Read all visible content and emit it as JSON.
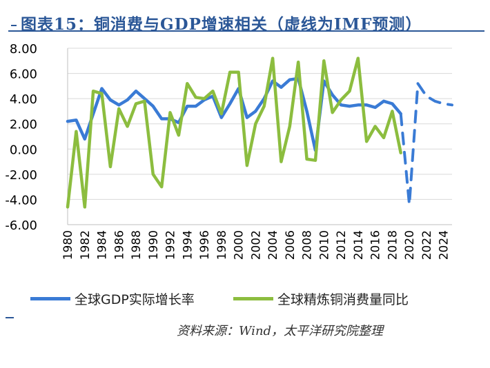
{
  "title": "图表15：铜消费与GDP增速相关（虚线为IMF预测）",
  "source": "资料来源：Wind，太平洋研究院整理",
  "colors": {
    "gdp": "#3a7bd5",
    "copper": "#8cbd3f",
    "title": "#2b5797",
    "grid": "#d9d9d9"
  },
  "chart_data": {
    "type": "line",
    "title": "",
    "xlabel": "",
    "ylabel": "",
    "ylim": [
      -6,
      8
    ],
    "yticks": [
      "-6.00",
      "-4.00",
      "-2.00",
      "0.00",
      "2.00",
      "4.00",
      "6.00",
      "8.00"
    ],
    "xticks": [
      "1980",
      "1982",
      "1984",
      "1986",
      "1988",
      "1990",
      "1992",
      "1994",
      "1996",
      "1998",
      "2000",
      "2002",
      "2004",
      "2006",
      "2008",
      "2010",
      "2012",
      "2014",
      "2016",
      "2018",
      "2020",
      "2022",
      "2024"
    ],
    "xrange": [
      1980,
      2025
    ],
    "grid": "horizontal",
    "legend_position": "bottom",
    "series": [
      {
        "name": "全球GDP实际增长率",
        "color": "#3a7bd5",
        "style": "solid",
        "x": [
          1980,
          1981,
          1982,
          1983,
          1984,
          1985,
          1986,
          1987,
          1988,
          1989,
          1990,
          1991,
          1992,
          1993,
          1994,
          1995,
          1996,
          1997,
          1998,
          1999,
          2000,
          2001,
          2002,
          2003,
          2004,
          2005,
          2006,
          2007,
          2008,
          2009,
          2010,
          2011,
          2012,
          2013,
          2014,
          2015,
          2016,
          2017,
          2018,
          2019
        ],
        "y": [
          2.2,
          2.3,
          0.8,
          2.8,
          4.8,
          3.9,
          3.5,
          3.9,
          4.6,
          4.0,
          3.4,
          2.4,
          2.4,
          2.1,
          3.4,
          3.4,
          3.9,
          4.2,
          2.5,
          3.6,
          4.8,
          2.5,
          3.0,
          4.0,
          5.4,
          4.9,
          5.5,
          5.6,
          3.0,
          -0.1,
          5.4,
          4.3,
          3.5,
          3.4,
          3.5,
          3.5,
          3.3,
          3.8,
          3.6,
          2.8
        ]
      },
      {
        "name": "全球GDP实际增长率（IMF预测）",
        "color": "#3a7bd5",
        "style": "dashed",
        "x": [
          2019,
          2020,
          2021,
          2022,
          2023,
          2024,
          2025
        ],
        "y": [
          2.8,
          -4.4,
          5.2,
          4.2,
          3.8,
          3.6,
          3.5
        ]
      },
      {
        "name": "全球精炼铜消费量同比",
        "color": "#8cbd3f",
        "style": "solid",
        "x": [
          1980,
          1981,
          1982,
          1983,
          1984,
          1985,
          1986,
          1987,
          1988,
          1989,
          1990,
          1991,
          1992,
          1993,
          1994,
          1995,
          1996,
          1997,
          1998,
          1999,
          2000,
          2001,
          2002,
          2003,
          2004,
          2005,
          2006,
          2007,
          2008,
          2009,
          2010,
          2011,
          2012,
          2013,
          2014,
          2015,
          2016,
          2017,
          2018,
          2019
        ],
        "y": [
          -4.6,
          1.4,
          -4.6,
          4.6,
          4.4,
          -1.4,
          3.2,
          1.8,
          3.6,
          3.8,
          -2.0,
          -3.0,
          2.9,
          1.1,
          5.2,
          4.1,
          4.0,
          4.6,
          2.8,
          6.1,
          6.1,
          -1.3,
          2.0,
          3.4,
          7.2,
          -1.0,
          1.8,
          6.9,
          -0.8,
          -0.9,
          7.0,
          2.9,
          3.9,
          4.6,
          7.2,
          0.6,
          1.8,
          0.9,
          3.0,
          -0.3
        ]
      }
    ]
  },
  "legend": {
    "gdp_label": "全球GDP实际增长率",
    "copper_label": "全球精炼铜消费量同比"
  }
}
